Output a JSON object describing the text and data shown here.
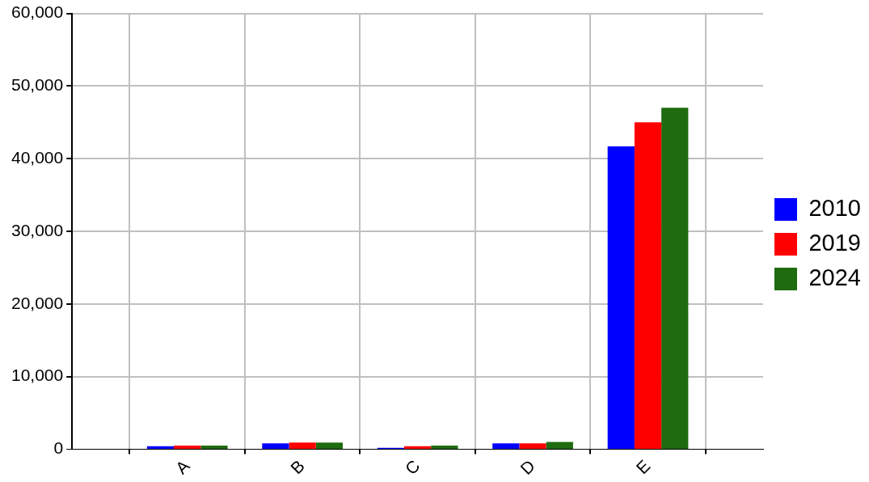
{
  "chart_data": {
    "type": "bar",
    "categories": [
      "A",
      "B",
      "C",
      "D",
      "E"
    ],
    "series": [
      {
        "name": "2010",
        "color": "#0000ff",
        "values": [
          400,
          800,
          200,
          800,
          41700
        ]
      },
      {
        "name": "2019",
        "color": "#ff0000",
        "values": [
          500,
          900,
          400,
          800,
          45000
        ]
      },
      {
        "name": "2024",
        "color": "#1e6b10",
        "values": [
          500,
          900,
          500,
          1000,
          47000
        ]
      }
    ],
    "ylim": [
      0,
      60000
    ],
    "yticks": [
      {
        "value": 0,
        "label": "0"
      },
      {
        "value": 10000,
        "label": "10,000"
      },
      {
        "value": 20000,
        "label": "20,000"
      },
      {
        "value": 30000,
        "label": "30,000"
      },
      {
        "value": 40000,
        "label": "40,000"
      },
      {
        "value": 50000,
        "label": "50,000"
      },
      {
        "value": 60000,
        "label": "60,000"
      }
    ],
    "grid": true,
    "legend": "right"
  }
}
